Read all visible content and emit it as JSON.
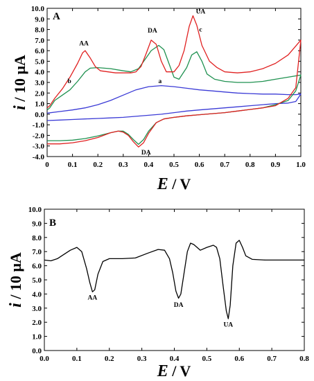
{
  "colors": {
    "curve_a": "#3a3ad6",
    "curve_b": "#1f9150",
    "curve_c": "#e02020",
    "curve_bottom": "#000000",
    "axes": "#000000"
  },
  "chart_data": [
    {
      "type": "line",
      "panel_label": "A",
      "xlabel": {
        "symbol": "E",
        "unit": " / V"
      },
      "ylabel": {
        "symbol": "i",
        "unit": " / 10 μA"
      },
      "xlim": [
        0,
        1.0
      ],
      "ylim": [
        -4.0,
        10.0
      ],
      "xticks": [
        0,
        0.1,
        0.2,
        0.3,
        0.4,
        0.5,
        0.6,
        0.7,
        0.8,
        0.9,
        1.0
      ],
      "xtick_labels": [
        "0",
        "0.1",
        "0.2",
        "0.3",
        "0.4",
        "0.5",
        "0.6",
        "0.7",
        "0.8",
        "0.9",
        "1.0"
      ],
      "yticks": [
        -4,
        -3,
        -2,
        -1,
        0,
        1,
        2,
        3,
        4,
        5,
        6,
        7,
        8,
        9,
        10
      ],
      "ytick_labels": [
        "-4.0",
        "-3.0",
        "-2.0",
        "-1.0",
        "0.0",
        "1.0",
        "2.0",
        "3.0",
        "4.0",
        "5.0",
        "6.0",
        "7.0",
        "8.0",
        "9.0",
        "10.0"
      ],
      "grid": false,
      "series": [
        {
          "label": "a",
          "color_key": "curve_a",
          "x": [
            0.0,
            0.05,
            0.1,
            0.15,
            0.2,
            0.25,
            0.3,
            0.35,
            0.4,
            0.45,
            0.5,
            0.55,
            0.6,
            0.65,
            0.7,
            0.75,
            0.8,
            0.85,
            0.9,
            0.95,
            0.98,
            1.0,
            0.98,
            0.95,
            0.9,
            0.85,
            0.8,
            0.75,
            0.7,
            0.65,
            0.6,
            0.55,
            0.5,
            0.45,
            0.4,
            0.35,
            0.3,
            0.25,
            0.2,
            0.15,
            0.1,
            0.05,
            0.0
          ],
          "y": [
            0.1,
            0.25,
            0.4,
            0.6,
            0.9,
            1.3,
            1.8,
            2.3,
            2.6,
            2.7,
            2.6,
            2.45,
            2.3,
            2.2,
            2.1,
            2.0,
            1.95,
            1.9,
            1.9,
            1.85,
            1.85,
            1.9,
            1.2,
            1.05,
            1.0,
            0.9,
            0.8,
            0.7,
            0.6,
            0.5,
            0.4,
            0.3,
            0.15,
            0.0,
            -0.1,
            -0.2,
            -0.3,
            -0.35,
            -0.4,
            -0.45,
            -0.5,
            -0.55,
            -0.6
          ]
        },
        {
          "label": "b",
          "color_key": "curve_b",
          "x": [
            0.0,
            0.01,
            0.03,
            0.06,
            0.09,
            0.12,
            0.15,
            0.17,
            0.2,
            0.25,
            0.3,
            0.33,
            0.36,
            0.39,
            0.41,
            0.44,
            0.46,
            0.48,
            0.5,
            0.52,
            0.55,
            0.57,
            0.59,
            0.61,
            0.63,
            0.66,
            0.7,
            0.75,
            0.8,
            0.85,
            0.9,
            0.95,
            1.0,
            0.98,
            0.95,
            0.9,
            0.85,
            0.8,
            0.75,
            0.7,
            0.65,
            0.6,
            0.55,
            0.5,
            0.46,
            0.43,
            0.4,
            0.38,
            0.36,
            0.34,
            0.32,
            0.3,
            0.28,
            0.25,
            0.2,
            0.15,
            0.1,
            0.05,
            0.0
          ],
          "y": [
            0.4,
            0.6,
            1.3,
            1.8,
            2.3,
            3.1,
            4.0,
            4.35,
            4.4,
            4.3,
            4.1,
            4.0,
            4.3,
            5.3,
            6.0,
            6.5,
            6.1,
            4.8,
            3.5,
            3.3,
            4.4,
            5.6,
            5.9,
            5.0,
            3.8,
            3.3,
            3.1,
            3.0,
            3.0,
            3.1,
            3.3,
            3.5,
            3.7,
            2.2,
            1.3,
            0.9,
            0.6,
            0.45,
            0.3,
            0.15,
            0.05,
            -0.05,
            -0.15,
            -0.3,
            -0.45,
            -0.8,
            -1.6,
            -2.4,
            -2.85,
            -2.4,
            -1.9,
            -1.6,
            -1.6,
            -1.75,
            -2.05,
            -2.3,
            -2.45,
            -2.5,
            -2.5
          ]
        },
        {
          "label": "c",
          "color_key": "curve_c",
          "x": [
            0.0,
            0.01,
            0.03,
            0.06,
            0.09,
            0.12,
            0.14,
            0.15,
            0.17,
            0.19,
            0.21,
            0.24,
            0.27,
            0.3,
            0.33,
            0.35,
            0.37,
            0.39,
            0.41,
            0.43,
            0.45,
            0.47,
            0.5,
            0.52,
            0.54,
            0.56,
            0.575,
            0.59,
            0.61,
            0.64,
            0.67,
            0.7,
            0.75,
            0.8,
            0.85,
            0.9,
            0.95,
            1.0,
            0.98,
            0.95,
            0.9,
            0.85,
            0.8,
            0.75,
            0.7,
            0.65,
            0.6,
            0.55,
            0.5,
            0.46,
            0.43,
            0.4,
            0.38,
            0.36,
            0.34,
            0.32,
            0.3,
            0.28,
            0.25,
            0.2,
            0.15,
            0.1,
            0.05,
            0.0
          ],
          "y": [
            0.6,
            0.8,
            1.5,
            2.4,
            3.5,
            4.8,
            5.8,
            6.0,
            5.3,
            4.5,
            4.1,
            4.0,
            3.9,
            3.9,
            3.9,
            4.0,
            4.5,
            5.7,
            7.0,
            6.6,
            5.0,
            4.0,
            4.0,
            4.6,
            6.0,
            8.3,
            9.3,
            8.4,
            6.5,
            5.0,
            4.4,
            4.0,
            3.9,
            4.0,
            4.3,
            4.8,
            5.6,
            7.0,
            2.5,
            1.5,
            0.8,
            0.6,
            0.45,
            0.3,
            0.15,
            0.05,
            -0.05,
            -0.15,
            -0.3,
            -0.45,
            -0.8,
            -1.8,
            -2.7,
            -3.1,
            -2.6,
            -2.0,
            -1.7,
            -1.6,
            -1.75,
            -2.2,
            -2.5,
            -2.7,
            -2.8,
            -2.8
          ]
        }
      ],
      "annotations": [
        {
          "text": "AA",
          "x": 0.145,
          "y": 6.5
        },
        {
          "text": "DA",
          "x": 0.415,
          "y": 7.7
        },
        {
          "text": "UA",
          "x": 0.605,
          "y": 9.5
        },
        {
          "text": "c",
          "x": 0.605,
          "y": 7.8
        },
        {
          "text": "a",
          "x": 0.445,
          "y": 2.95
        },
        {
          "text": "b",
          "x": 0.088,
          "y": 2.95
        },
        {
          "text": "DA",
          "x": 0.39,
          "y": -3.8
        }
      ]
    },
    {
      "type": "line",
      "panel_label": "B",
      "xlabel": {
        "symbol": "E",
        "unit": " / V"
      },
      "ylabel": {
        "symbol": "i",
        "unit": " / 10 μA"
      },
      "xlim": [
        0.0,
        0.8
      ],
      "ylim": [
        0.0,
        10.0
      ],
      "xticks": [
        0.0,
        0.1,
        0.2,
        0.3,
        0.4,
        0.5,
        0.6,
        0.7,
        0.8
      ],
      "xtick_labels": [
        "0.0",
        "0.1",
        "0.2",
        "0.3",
        "0.4",
        "0.5",
        "0.6",
        "0.7",
        "0.8"
      ],
      "yticks": [
        0,
        1,
        2,
        3,
        4,
        5,
        6,
        7,
        8,
        9,
        10
      ],
      "ytick_labels": [
        "0.0",
        "1.0",
        "2.0",
        "3.0",
        "4.0",
        "5.0",
        "6.0",
        "7.0",
        "8.0",
        "9.0",
        "10.0"
      ],
      "grid": false,
      "series": [
        {
          "color_key": "curve_bottom",
          "x": [
            0.0,
            0.02,
            0.04,
            0.06,
            0.08,
            0.1,
            0.115,
            0.13,
            0.14,
            0.148,
            0.155,
            0.165,
            0.18,
            0.2,
            0.24,
            0.28,
            0.32,
            0.35,
            0.37,
            0.385,
            0.395,
            0.405,
            0.413,
            0.42,
            0.43,
            0.44,
            0.45,
            0.46,
            0.48,
            0.5,
            0.52,
            0.53,
            0.54,
            0.55,
            0.56,
            0.566,
            0.572,
            0.58,
            0.59,
            0.6,
            0.61,
            0.62,
            0.64,
            0.68,
            0.72,
            0.76,
            0.8
          ],
          "y": [
            6.4,
            6.35,
            6.5,
            6.8,
            7.1,
            7.3,
            7.0,
            5.8,
            4.8,
            4.15,
            4.3,
            5.4,
            6.3,
            6.5,
            6.5,
            6.55,
            6.9,
            7.15,
            7.1,
            6.5,
            5.5,
            4.2,
            3.7,
            4.0,
            5.5,
            7.0,
            7.6,
            7.5,
            7.1,
            7.3,
            7.45,
            7.3,
            6.5,
            4.6,
            2.8,
            2.25,
            3.2,
            6.0,
            7.6,
            7.8,
            7.3,
            6.7,
            6.45,
            6.4,
            6.4,
            6.4,
            6.4
          ]
        }
      ],
      "annotations": [
        {
          "text": "AA",
          "x": 0.148,
          "y": 3.6
        },
        {
          "text": "DA",
          "x": 0.413,
          "y": 3.1
        },
        {
          "text": "UA",
          "x": 0.566,
          "y": 1.7
        }
      ]
    }
  ]
}
